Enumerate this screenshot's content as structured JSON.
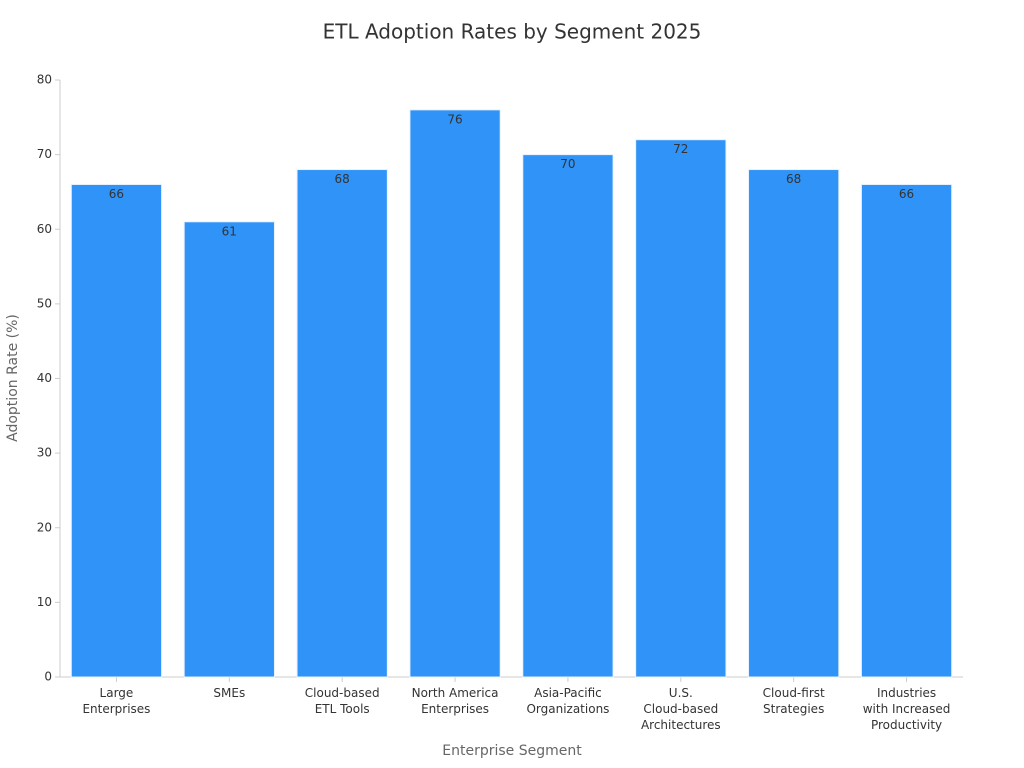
{
  "chart_data": {
    "type": "bar",
    "title": "ETL Adoption Rates by Segment 2025",
    "x_label": "Enterprise Segment",
    "y_label": "Adoption Rate (%)",
    "categories": [
      "Large\nEnterprises",
      "SMEs",
      "Cloud-based\nETL Tools",
      "North America\nEnterprises",
      "Asia-Pacific\nOrganizations",
      "U.S.\nCloud-based\nArchitectures",
      "Cloud-first\nStrategies",
      "Industries\nwith Increased\nProductivity"
    ],
    "values": [
      66,
      61,
      68,
      76,
      70,
      72,
      68,
      66
    ],
    "color": "#2f93f7",
    "ylim": [
      0,
      80
    ],
    "yticks": [
      0,
      10,
      20,
      30,
      40,
      50,
      60,
      70,
      80
    ],
    "grid": false
  }
}
